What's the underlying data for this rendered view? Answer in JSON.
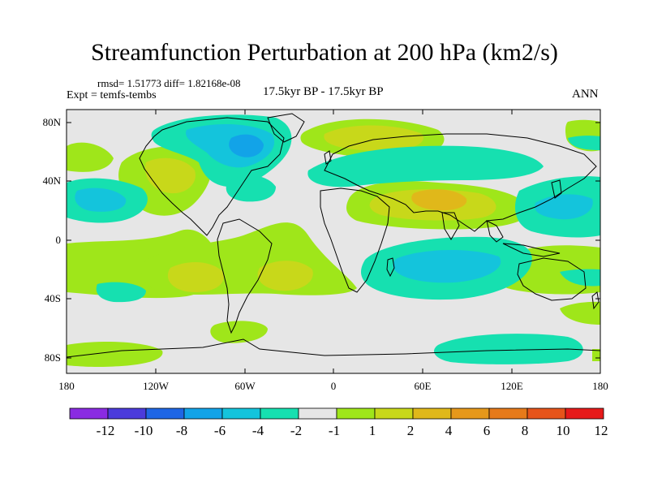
{
  "title": "Streamfunction Perturbation at 200 hPa (km2/s)",
  "stats": "rmsd= 1.51773 diff= 1.82168e-08",
  "expt": "Expt = temfs-tembs",
  "center_label": "17.5kyr BP - 17.5kyr BP",
  "right_label": "ANN",
  "axes": {
    "x_ticks": [
      "180",
      "120W",
      "60W",
      "0",
      "60E",
      "120E",
      "180"
    ],
    "y_ticks": [
      "80N",
      "40N",
      "0",
      "40S",
      "80S"
    ]
  },
  "colorbar": {
    "colors": [
      "#8a2be2",
      "#4b3bdb",
      "#1f66e5",
      "#12a3e8",
      "#14c4dc",
      "#16e0b0",
      "#e6e6e6",
      "#9fe61a",
      "#c8d81a",
      "#e0b81a",
      "#e6981a",
      "#e67a1a",
      "#e6541a",
      "#e61a1a"
    ],
    "labels": [
      "-12",
      "-10",
      "-8",
      "-6",
      "-4",
      "-2",
      "-1",
      "1",
      "2",
      "4",
      "6",
      "8",
      "10",
      "12"
    ]
  },
  "palette": {
    "neutral": "#e6e6e6",
    "pos1": "#9fe61a",
    "pos2": "#c8d81a",
    "pos3": "#e0b81a",
    "pos4": "#e6981a",
    "neg1": "#16e0b0",
    "neg2": "#14c4dc",
    "neg3": "#12a3e8"
  }
}
